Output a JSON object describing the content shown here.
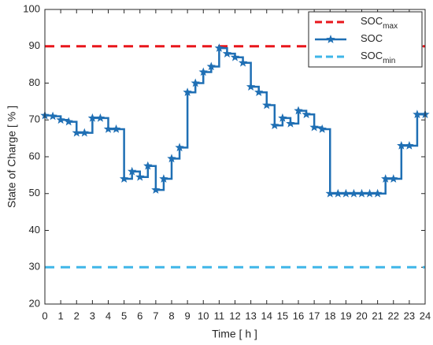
{
  "chart_data": {
    "type": "line",
    "xlabel": "Time [ h ]",
    "ylabel": "State of Charge [ % ]",
    "xlim": [
      0,
      24
    ],
    "xticks": [
      0,
      1,
      2,
      3,
      4,
      5,
      6,
      7,
      8,
      9,
      10,
      11,
      12,
      13,
      14,
      15,
      16,
      17,
      18,
      19,
      20,
      21,
      22,
      23,
      24
    ],
    "ylim": [
      20,
      100
    ],
    "yticks": [
      20,
      30,
      40,
      50,
      60,
      70,
      80,
      90,
      100
    ],
    "grid": false,
    "legend": "upper right",
    "series": [
      {
        "name": "SOC",
        "name_sub": "max",
        "color": "#e8161b",
        "style": "dashed",
        "y": 90
      },
      {
        "name": "SOC",
        "color": "#1f6fb4",
        "style": "steps",
        "marker": "star",
        "x": [
          0,
          0.5,
          1,
          1.5,
          2,
          2.5,
          3,
          3.5,
          4,
          4.5,
          5,
          5.5,
          6,
          6.5,
          7,
          7.5,
          8,
          8.5,
          9,
          9.5,
          10,
          10.5,
          11,
          11.5,
          12,
          12.5,
          13,
          13.5,
          14,
          14.5,
          15,
          15.5,
          16,
          16.5,
          17,
          17.5,
          18,
          18.5,
          19,
          19.5,
          20,
          20.5,
          21,
          21.5,
          22,
          22.5,
          23,
          23.5,
          24
        ],
        "values": [
          71.2,
          71,
          70,
          69.5,
          66.5,
          66.5,
          70.5,
          70.5,
          67.5,
          67.5,
          54,
          56,
          54.5,
          57.5,
          51,
          54,
          59.5,
          62.5,
          77.5,
          80,
          83,
          84.5,
          89.5,
          88,
          87,
          85.5,
          79,
          77.5,
          74,
          68.5,
          70.5,
          69,
          72.5,
          71.5,
          68,
          67.5,
          50,
          50,
          50,
          50,
          50,
          50,
          50,
          54,
          54,
          63,
          63,
          71.5,
          71.5
        ]
      },
      {
        "name": "SOC",
        "name_sub": "min",
        "color": "#3fb6e8",
        "style": "dashed",
        "y": 30
      }
    ]
  }
}
